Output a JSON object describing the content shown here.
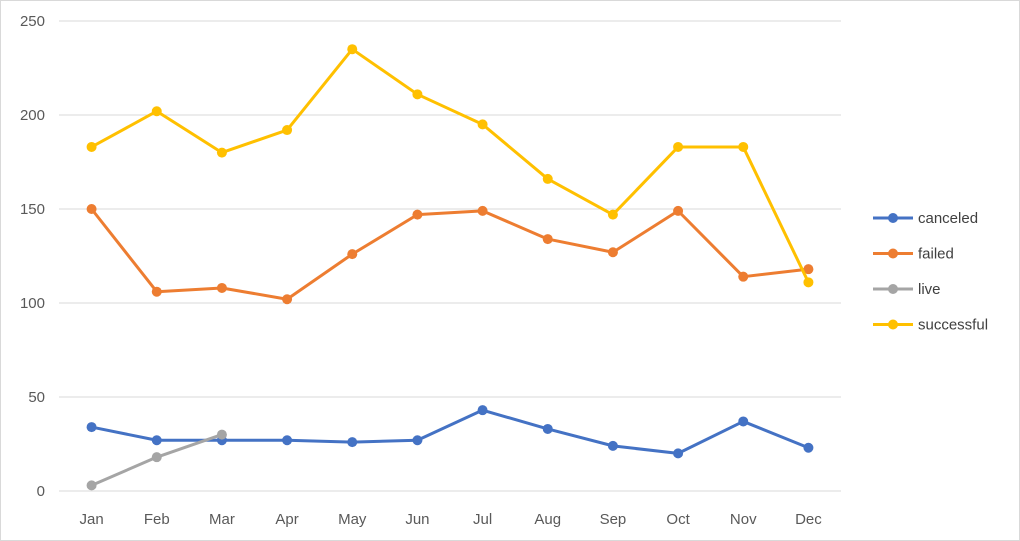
{
  "chart_data": {
    "type": "line",
    "title": "",
    "xlabel": "",
    "ylabel": "",
    "categories": [
      "Jan",
      "Feb",
      "Mar",
      "Apr",
      "May",
      "Jun",
      "Jul",
      "Aug",
      "Sep",
      "Oct",
      "Nov",
      "Dec"
    ],
    "ylim": [
      0,
      250
    ],
    "yticks": [
      0,
      50,
      100,
      150,
      200,
      250
    ],
    "grid": true,
    "legend_position": "right",
    "series": [
      {
        "name": "canceled",
        "color": "#4472c4",
        "values": [
          34,
          27,
          27,
          27,
          26,
          27,
          43,
          33,
          24,
          20,
          37,
          23
        ]
      },
      {
        "name": "failed",
        "color": "#ed7d31",
        "values": [
          150,
          106,
          108,
          102,
          126,
          147,
          149,
          134,
          127,
          149,
          114,
          118
        ]
      },
      {
        "name": "live",
        "color": "#a5a5a5",
        "values": [
          3,
          18,
          30,
          null,
          null,
          null,
          null,
          null,
          null,
          null,
          null,
          null
        ]
      },
      {
        "name": "successful",
        "color": "#ffc000",
        "values": [
          183,
          202,
          180,
          192,
          235,
          211,
          195,
          166,
          147,
          183,
          183,
          111
        ]
      }
    ]
  }
}
